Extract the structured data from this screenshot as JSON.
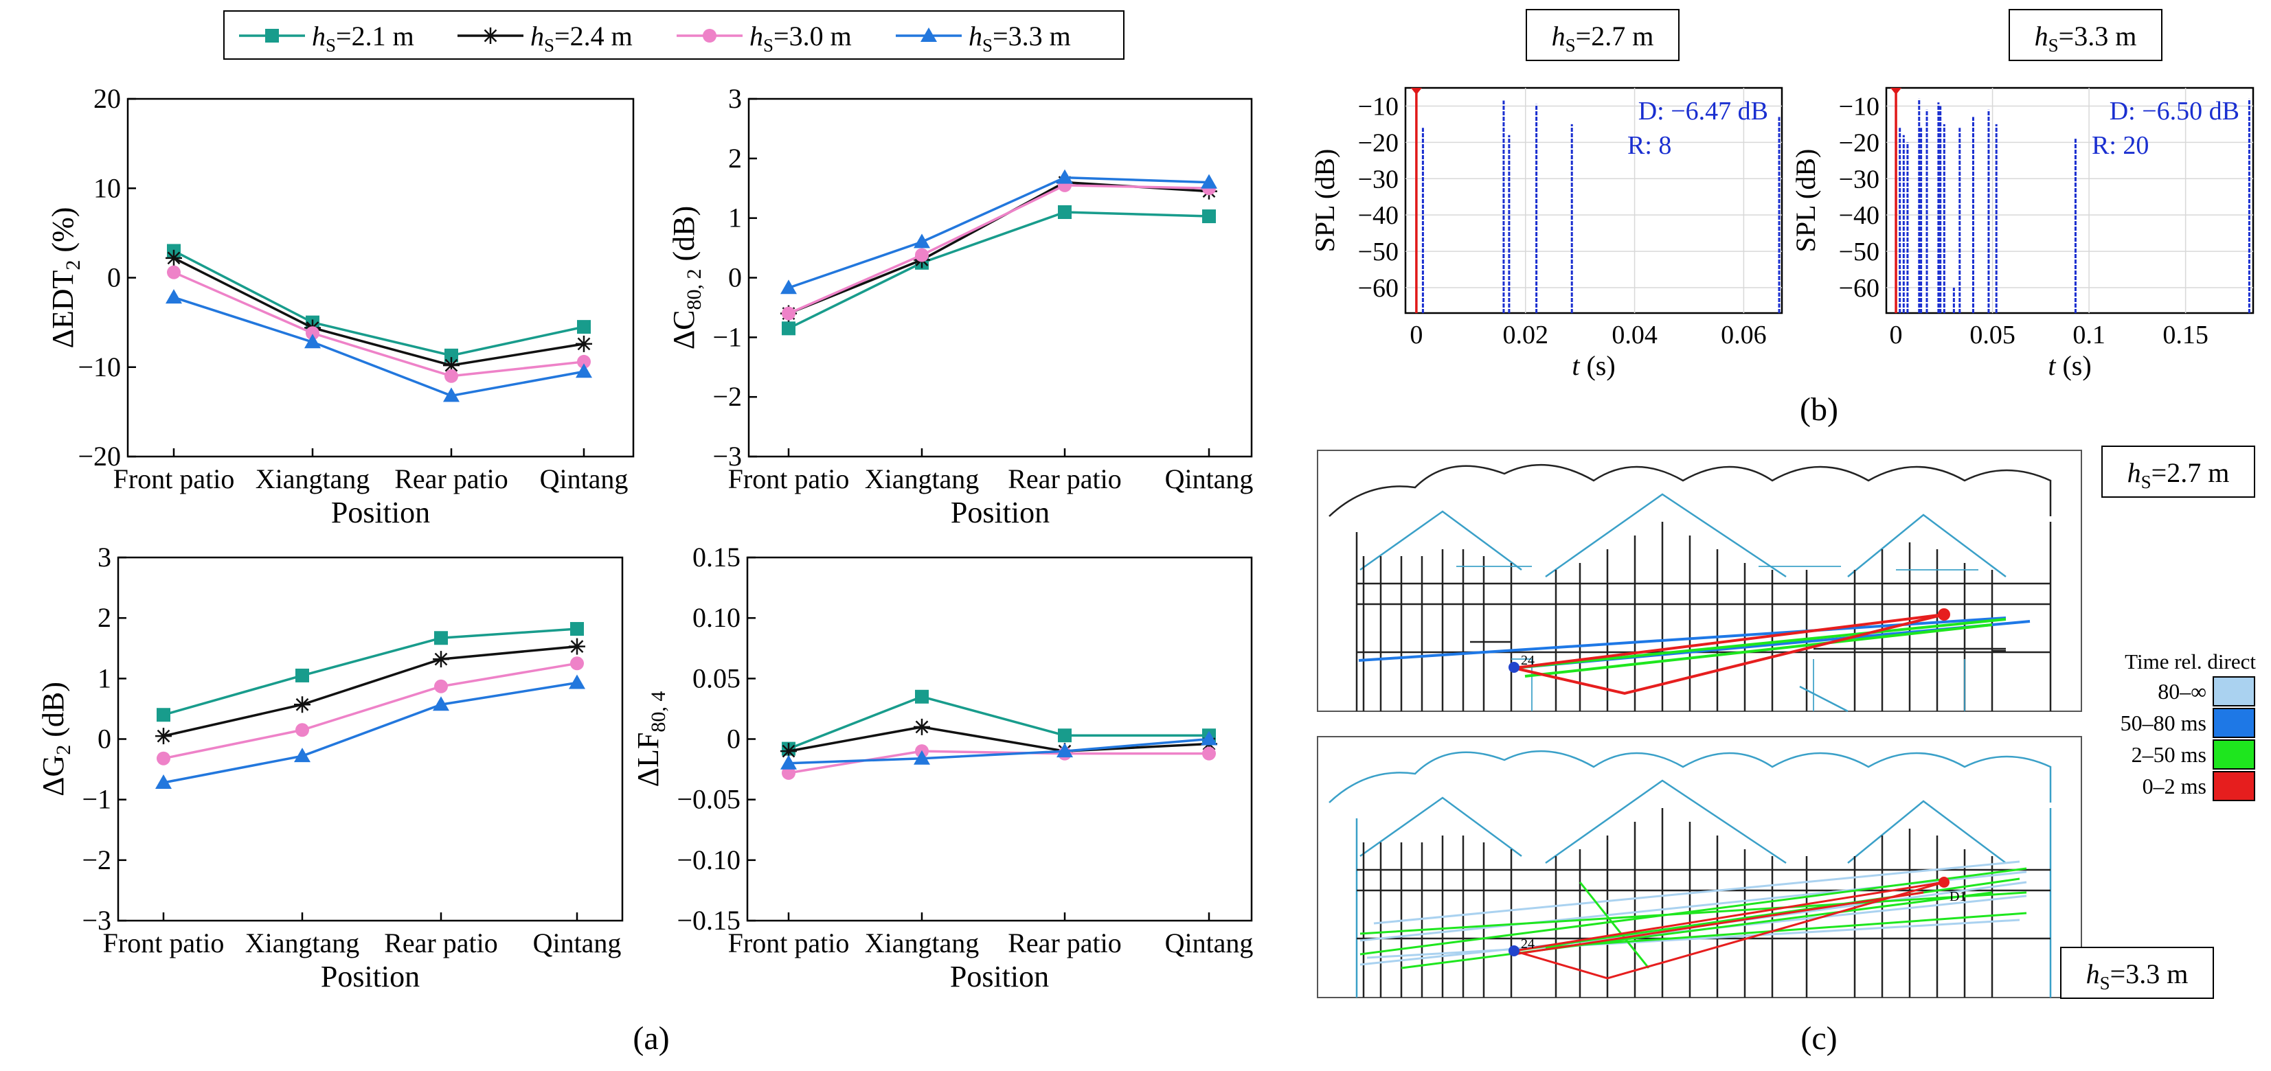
{
  "legend": [
    {
      "label": "hS=2.1 m",
      "h": "h",
      "s": "S",
      "rest": "=2.1 m",
      "color": "#189c8c",
      "marker": "square"
    },
    {
      "label": "hS=2.4 m",
      "h": "h",
      "s": "S",
      "rest": "=2.4 m",
      "color": "#111111",
      "marker": "star"
    },
    {
      "label": "hS=3.0 m",
      "h": "h",
      "s": "S",
      "rest": "=3.0 m",
      "color": "#ee82c8",
      "marker": "circle"
    },
    {
      "label": "hS=3.3 m",
      "h": "h",
      "s": "S",
      "rest": "=3.3 m",
      "color": "#2277dd",
      "marker": "triangle"
    }
  ],
  "captions": {
    "a": "(a)",
    "b": "(b)",
    "c": "(c)"
  },
  "chart_data": [
    {
      "type": "line",
      "id": "edt",
      "title": "",
      "ylabel": "ΔEDT₂ (%)",
      "ylabel_parts": [
        "ΔEDT",
        "2",
        " (%)"
      ],
      "xlabel": "Position",
      "categories": [
        "Front patio",
        "Xiangtang",
        "Rear patio",
        "Qintang"
      ],
      "ylim": [
        -20,
        20
      ],
      "yticks": [
        -20,
        -10,
        0,
        10,
        20
      ],
      "ytick_labels": [
        "−20",
        "−10",
        "0",
        "10",
        "20"
      ],
      "series": [
        {
          "name": "hS=2.1 m",
          "values": [
            3.0,
            -5.0,
            -8.7,
            -5.5
          ]
        },
        {
          "name": "hS=2.4 m",
          "values": [
            2.2,
            -5.6,
            -9.8,
            -7.4
          ]
        },
        {
          "name": "hS=3.0 m",
          "values": [
            0.6,
            -6.2,
            -11.0,
            -9.4
          ]
        },
        {
          "name": "hS=3.3 m",
          "values": [
            -2.2,
            -7.2,
            -13.2,
            -10.5
          ]
        }
      ]
    },
    {
      "type": "line",
      "id": "c80",
      "ylabel": "ΔC80,2 (dB)",
      "ylabel_parts": [
        "ΔC",
        "80, 2",
        " (dB)"
      ],
      "xlabel": "Position",
      "categories": [
        "Front patio",
        "Xiangtang",
        "Rear patio",
        "Qintang"
      ],
      "ylim": [
        -3,
        3
      ],
      "yticks": [
        -3,
        -2,
        -1,
        0,
        1,
        2,
        3
      ],
      "ytick_labels": [
        "−3",
        "−2",
        "−1",
        "0",
        "1",
        "2",
        "3"
      ],
      "series": [
        {
          "name": "hS=2.1 m",
          "values": [
            -0.85,
            0.25,
            1.1,
            1.03
          ]
        },
        {
          "name": "hS=2.4 m",
          "values": [
            -0.6,
            0.3,
            1.6,
            1.45
          ]
        },
        {
          "name": "hS=3.0 m",
          "values": [
            -0.6,
            0.38,
            1.55,
            1.5
          ]
        },
        {
          "name": "hS=3.3 m",
          "values": [
            -0.17,
            0.6,
            1.68,
            1.6
          ]
        }
      ]
    },
    {
      "type": "line",
      "id": "g",
      "ylabel": "ΔG2 (dB)",
      "ylabel_parts": [
        "ΔG",
        "2",
        " (dB)"
      ],
      "xlabel": "Position",
      "categories": [
        "Front patio",
        "Xiangtang",
        "Rear patio",
        "Qintang"
      ],
      "ylim": [
        -3,
        3
      ],
      "yticks": [
        -3,
        -2,
        -1,
        0,
        1,
        2,
        3
      ],
      "ytick_labels": [
        "−3",
        "−2",
        "−1",
        "0",
        "1",
        "2",
        "3"
      ],
      "series": [
        {
          "name": "hS=2.1 m",
          "values": [
            0.4,
            1.05,
            1.67,
            1.82
          ]
        },
        {
          "name": "hS=2.4 m",
          "values": [
            0.05,
            0.57,
            1.32,
            1.53
          ]
        },
        {
          "name": "hS=3.0 m",
          "values": [
            -0.32,
            0.15,
            0.87,
            1.25
          ]
        },
        {
          "name": "hS=3.3 m",
          "values": [
            -0.72,
            -0.28,
            0.57,
            0.93
          ]
        }
      ]
    },
    {
      "type": "line",
      "id": "lf",
      "ylabel": "ΔLF80,4",
      "ylabel_parts": [
        "ΔLF",
        "80, 4",
        ""
      ],
      "xlabel": "Position",
      "categories": [
        "Front patio",
        "Xiangtang",
        "Rear patio",
        "Qintang"
      ],
      "ylim": [
        -0.15,
        0.15
      ],
      "yticks": [
        -0.15,
        -0.1,
        -0.05,
        0,
        0.05,
        0.1,
        0.15
      ],
      "ytick_labels": [
        "−0.15",
        "−0.10",
        "−0.05",
        "0",
        "0.05",
        "0.10",
        "0.15"
      ],
      "series": [
        {
          "name": "hS=2.1 m",
          "values": [
            -0.008,
            0.035,
            0.003,
            0.003
          ]
        },
        {
          "name": "hS=2.4 m",
          "values": [
            -0.01,
            0.01,
            -0.01,
            -0.004
          ]
        },
        {
          "name": "hS=3.0 m",
          "values": [
            -0.028,
            -0.01,
            -0.012,
            -0.012
          ]
        },
        {
          "name": "hS=3.3 m",
          "values": [
            -0.02,
            -0.016,
            -0.01,
            0.0
          ]
        }
      ]
    },
    {
      "type": "bar",
      "id": "spl1",
      "title": "hS=2.7 m",
      "title_rest": "=2.7 m",
      "ylabel": "SPL (dB)",
      "xlabel": "t (s)",
      "xlabel_parts": [
        "t",
        " (s)"
      ],
      "xlim": [
        -0.002,
        0.067
      ],
      "ylim": [
        -67,
        -5
      ],
      "xticks": [
        0,
        0.02,
        0.04,
        0.06
      ],
      "xtick_labels": [
        "0",
        "0.02",
        "0.04",
        "0.06"
      ],
      "yticks": [
        -10,
        -20,
        -30,
        -40,
        -50,
        -60
      ],
      "ytick_labels": [
        "−10",
        "−20",
        "−30",
        "−40",
        "−50",
        "−60"
      ],
      "annotation_d": "D: −6.47 dB",
      "annotation_r": "R: 8",
      "direct": {
        "t": 0,
        "spl": -6.47
      },
      "reflections": [
        {
          "t": 0.0012,
          "spl": -16
        },
        {
          "t": 0.016,
          "spl": -8.5
        },
        {
          "t": 0.017,
          "spl": -18
        },
        {
          "t": 0.022,
          "spl": -9.5
        },
        {
          "t": 0.0285,
          "spl": -15
        },
        {
          "t": 0.0665,
          "spl": -13
        }
      ]
    },
    {
      "type": "bar",
      "id": "spl2",
      "title": "hS=3.3 m",
      "title_rest": "=3.3 m",
      "ylabel": "SPL (dB)",
      "xlabel": "t (s)",
      "xlabel_parts": [
        "t",
        " (s)"
      ],
      "xlim": [
        -0.005,
        0.185
      ],
      "ylim": [
        -67,
        -5
      ],
      "xticks": [
        0,
        0.05,
        0.1,
        0.15
      ],
      "xtick_labels": [
        "0",
        "0.05",
        "0.1",
        "0.15"
      ],
      "yticks": [
        -10,
        -20,
        -30,
        -40,
        -50,
        -60
      ],
      "ytick_labels": [
        "−10",
        "−20",
        "−30",
        "−40",
        "−50",
        "−60"
      ],
      "annotation_d": "D: −6.50 dB",
      "annotation_r": "R: 20",
      "direct": {
        "t": 0,
        "spl": -6.5
      },
      "reflections": [
        {
          "t": 0.002,
          "spl": -16
        },
        {
          "t": 0.004,
          "spl": -18
        },
        {
          "t": 0.006,
          "spl": -20
        },
        {
          "t": 0.012,
          "spl": -8
        },
        {
          "t": 0.013,
          "spl": -16
        },
        {
          "t": 0.016,
          "spl": -11
        },
        {
          "t": 0.022,
          "spl": -9
        },
        {
          "t": 0.023,
          "spl": -10
        },
        {
          "t": 0.025,
          "spl": -15
        },
        {
          "t": 0.03,
          "spl": -60
        },
        {
          "t": 0.033,
          "spl": -16
        },
        {
          "t": 0.04,
          "spl": -13
        },
        {
          "t": 0.048,
          "spl": -11
        },
        {
          "t": 0.052,
          "spl": -15
        },
        {
          "t": 0.093,
          "spl": -19
        },
        {
          "t": 0.183,
          "spl": -8
        }
      ]
    }
  ],
  "panel_c": {
    "top_label_rest": "=2.7 m",
    "bottom_label_rest": "=3.3 m",
    "label_h": "h",
    "label_s": "S",
    "legend_title": "Time rel. direct",
    "legend_items": [
      {
        "label": "80–∞",
        "color": "#aad2f0"
      },
      {
        "label": "50–80 ms",
        "color": "#1e78e6"
      },
      {
        "label": "2–50 ms",
        "color": "#1ee61e"
      },
      {
        "label": "0–2 ms",
        "color": "#e61e1e"
      }
    ],
    "receiver_label_top": "24",
    "receiver_label_bottom": "24",
    "source_label_bottom": "D1"
  }
}
